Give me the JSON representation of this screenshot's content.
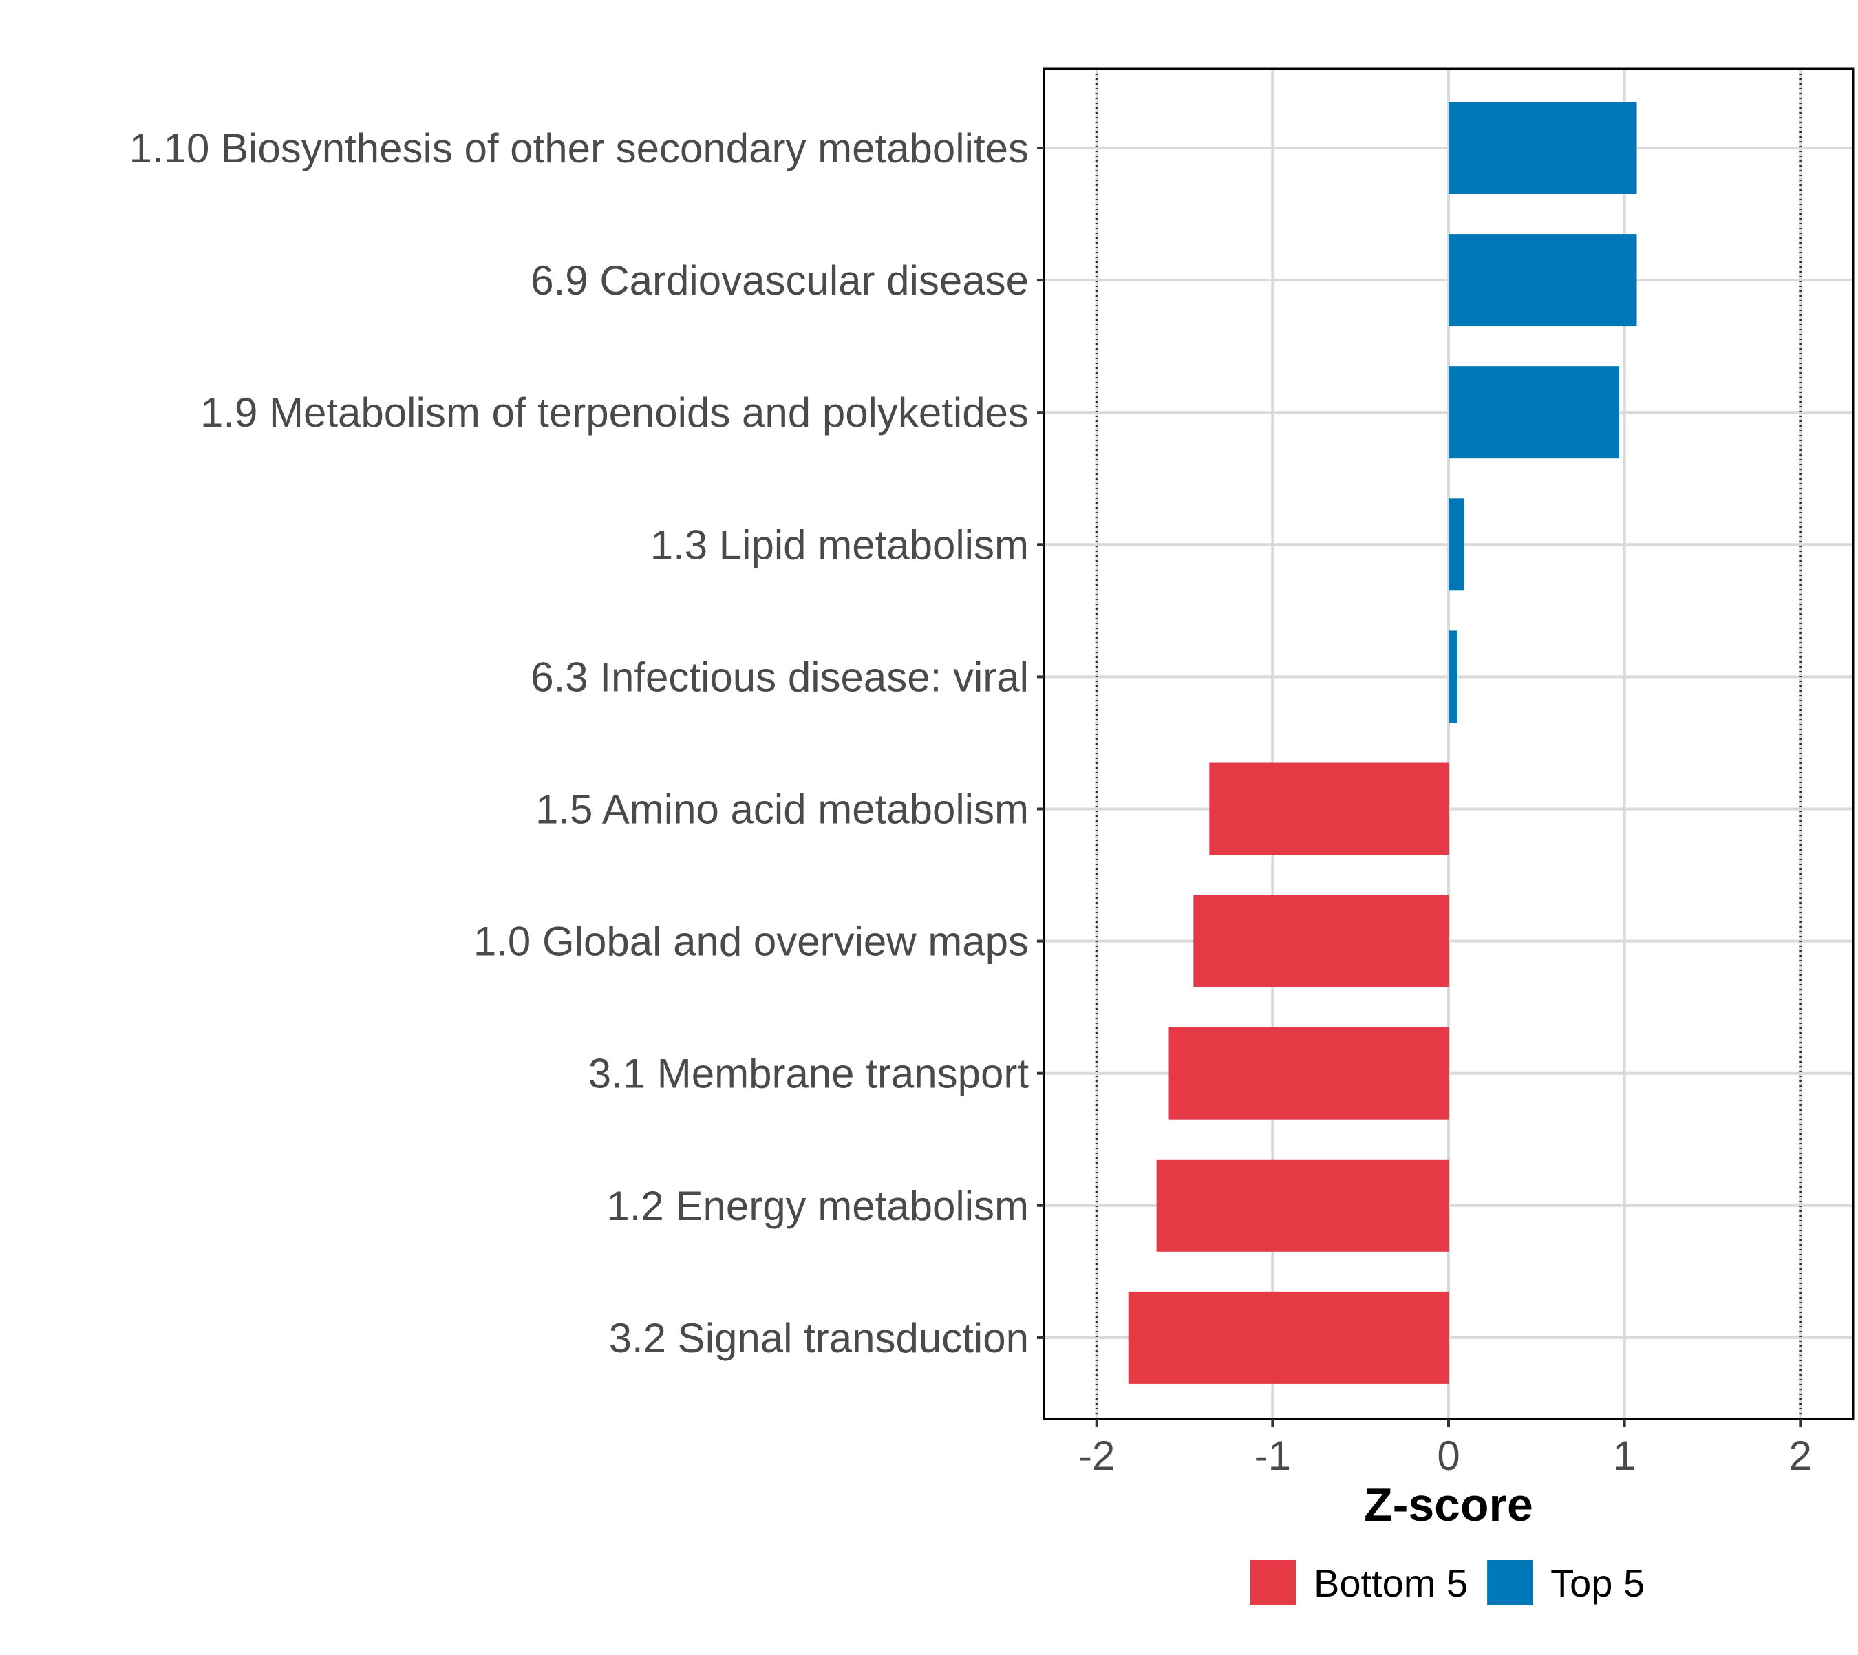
{
  "chart_data": {
    "type": "bar",
    "orientation": "horizontal",
    "title": "",
    "xlabel": "Z-score",
    "ylabel": "",
    "xlim": [
      -2.3,
      2.3
    ],
    "x_ticks": [
      -2,
      -1,
      0,
      1,
      2
    ],
    "x_tick_labels": [
      "-2",
      "-1",
      "0",
      "1",
      "2"
    ],
    "reference_lines": [
      -2,
      2
    ],
    "grid": true,
    "legend_position": "bottom",
    "categories": [
      "1.10 Biosynthesis of other secondary metabolites",
      "6.9 Cardiovascular disease",
      "1.9 Metabolism of terpenoids and polyketides",
      "1.3 Lipid metabolism",
      "6.3 Infectious disease: viral",
      "1.5 Amino acid metabolism",
      "1.0 Global and overview maps",
      "3.1 Membrane transport",
      "1.2 Energy metabolism",
      "3.2 Signal transduction"
    ],
    "values": [
      1.07,
      1.07,
      0.97,
      0.09,
      0.05,
      -1.36,
      -1.45,
      -1.59,
      -1.66,
      -1.82
    ],
    "groups": [
      "Top 5",
      "Top 5",
      "Top 5",
      "Top 5",
      "Top 5",
      "Bottom 5",
      "Bottom 5",
      "Bottom 5",
      "Bottom 5",
      "Bottom 5"
    ],
    "legend": [
      {
        "name": "Bottom 5",
        "color": "#E63946"
      },
      {
        "name": "Top 5",
        "color": "#0077B6"
      }
    ]
  }
}
